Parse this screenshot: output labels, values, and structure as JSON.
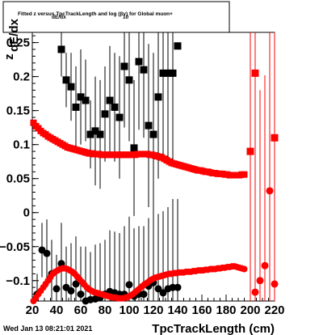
{
  "chart_data": {
    "type": "scatter",
    "title": "Fitted  z  versus TpcTrackLength and log  (βγ) for Global muon+",
    "title_sub_dedx": "dE/dx",
    "title_sub_log": "10",
    "xlabel": "TpcTrackLength (cm)",
    "ylabel": "z",
    "ylabel_sub": "dE/dx",
    "date_stamp": "Wed Jan 13 08:21:01 2021",
    "xlim": [
      20,
      220
    ],
    "ylim": [
      -0.13,
      0.265
    ],
    "x_ticks": [
      20,
      40,
      60,
      80,
      100,
      120,
      140,
      160,
      180,
      200,
      220
    ],
    "x_tick_labels": [
      "20",
      "40",
      "60",
      "80",
      "100",
      "120",
      "140",
      "160",
      "180",
      "200",
      "220"
    ],
    "y_ticks": [
      -0.1,
      -0.05,
      0,
      0.05,
      0.1,
      0.15,
      0.2,
      0.25
    ],
    "y_tick_labels": [
      "−0.1",
      "−0.05",
      "0",
      "0.05",
      "0.1",
      "0.15",
      "0.2",
      "0.25"
    ],
    "colors": {
      "black": "#000000",
      "red": "#ff0000"
    },
    "series": [
      {
        "marker": "square",
        "color": "#000000",
        "x": [
          44,
          48,
          52,
          56,
          60,
          64,
          68,
          72,
          76,
          80,
          84,
          88,
          92,
          96,
          100,
          104,
          108,
          112,
          116,
          120,
          124,
          128,
          132,
          136,
          140
        ],
        "y": [
          0.24,
          0.195,
          0.185,
          0.155,
          0.17,
          0.165,
          0.115,
          0.12,
          0.115,
          0.145,
          0.165,
          0.155,
          0.14,
          0.215,
          0.195,
          0.095,
          0.222,
          0.21,
          0.128,
          0.115,
          0.17,
          0.205,
          0.205,
          0.205,
          0.245
        ],
        "err": [
          0.04,
          0.04,
          0.05,
          0.06,
          0.07,
          0.06,
          0.05,
          0.08,
          0.08,
          0.07,
          0.08,
          0.08,
          0.09,
          0.09,
          0.09,
          0.1,
          0.1,
          0.1,
          0.12,
          0.12,
          0.12,
          0.13,
          0.13,
          0.13,
          0
        ]
      },
      {
        "marker": "circle",
        "color": "#000000",
        "x": [
          24,
          28,
          32,
          36,
          40,
          44,
          48,
          52,
          56,
          60,
          64,
          68,
          72,
          76,
          80,
          84,
          88,
          92,
          96,
          100,
          104,
          108,
          112,
          116,
          120,
          124,
          128,
          132,
          136,
          140
        ],
        "y": [
          -0.12,
          -0.055,
          -0.06,
          -0.09,
          -0.112,
          -0.075,
          -0.11,
          -0.115,
          -0.105,
          -0.12,
          -0.13,
          -0.128,
          -0.127,
          -0.125,
          -0.12,
          -0.116,
          -0.118,
          -0.12,
          -0.12,
          -0.106,
          -0.123,
          -0.12,
          -0.12,
          -0.108,
          -0.103,
          -0.112,
          -0.118,
          -0.112,
          -0.11,
          -0.11
        ],
        "err": [
          0.03,
          0.04,
          0.05,
          0.05,
          0.05,
          0.06,
          0.06,
          0.07,
          0.07,
          0.07,
          0.08,
          0.07,
          0.08,
          0.08,
          0.08,
          0.09,
          0.09,
          0.09,
          0.1,
          0.1,
          0.1,
          0.1,
          0.1,
          0.1,
          0.11,
          0.11,
          0.12,
          0.12,
          0.13,
          0.13
        ]
      },
      {
        "marker": "square",
        "color": "#ff0000",
        "x": [
          21,
          23,
          25,
          27,
          29,
          31,
          33,
          35,
          37,
          39,
          41,
          43,
          45,
          47,
          49,
          51,
          53,
          55,
          57,
          59,
          61,
          63,
          65,
          67,
          69,
          71,
          73,
          75,
          77,
          79,
          81,
          83,
          85,
          87,
          89,
          91,
          93,
          95,
          97,
          99,
          101,
          103,
          105,
          107,
          109,
          111,
          113,
          115,
          117,
          119,
          121,
          123,
          125,
          127,
          129,
          131,
          133,
          135,
          137,
          139,
          141,
          143,
          145,
          147,
          149,
          151,
          153,
          155,
          157,
          159,
          161,
          163,
          165,
          167,
          169,
          171,
          173,
          175,
          177,
          179,
          181,
          183,
          185,
          187,
          189,
          191,
          193,
          195
        ],
        "y": [
          0.132,
          0.127,
          0.124,
          0.12,
          0.117,
          0.115,
          0.112,
          0.11,
          0.108,
          0.106,
          0.104,
          0.102,
          0.1,
          0.098,
          0.096,
          0.095,
          0.094,
          0.093,
          0.092,
          0.091,
          0.09,
          0.089,
          0.088,
          0.087,
          0.087,
          0.086,
          0.086,
          0.086,
          0.085,
          0.085,
          0.085,
          0.085,
          0.085,
          0.085,
          0.085,
          0.085,
          0.085,
          0.085,
          0.085,
          0.085,
          0.085,
          0.085,
          0.085,
          0.086,
          0.086,
          0.086,
          0.086,
          0.086,
          0.085,
          0.085,
          0.084,
          0.083,
          0.082,
          0.081,
          0.079,
          0.077,
          0.075,
          0.073,
          0.072,
          0.071,
          0.07,
          0.069,
          0.068,
          0.067,
          0.066,
          0.065,
          0.064,
          0.063,
          0.062,
          0.062,
          0.061,
          0.06,
          0.06,
          0.059,
          0.058,
          0.058,
          0.057,
          0.057,
          0.057,
          0.056,
          0.056,
          0.055,
          0.055,
          0.055,
          0.055,
          0.055,
          0.056,
          0.056
        ],
        "err": []
      },
      {
        "marker": "circle",
        "color": "#ff0000",
        "x": [
          21,
          23,
          25,
          27,
          29,
          31,
          33,
          35,
          37,
          39,
          41,
          43,
          45,
          47,
          49,
          51,
          53,
          55,
          57,
          59,
          61,
          63,
          65,
          67,
          69,
          71,
          73,
          75,
          77,
          79,
          81,
          83,
          85,
          87,
          89,
          91,
          93,
          95,
          97,
          99,
          101,
          103,
          105,
          107,
          109,
          111,
          113,
          115,
          117,
          119,
          121,
          123,
          125,
          127,
          129,
          131,
          133,
          135,
          137,
          139,
          141,
          143,
          145,
          147,
          149,
          151,
          153,
          155,
          157,
          159,
          161,
          163,
          165,
          167,
          169,
          171,
          173,
          175,
          177,
          179,
          181,
          183,
          185,
          187,
          189,
          191,
          193,
          195
        ],
        "y": [
          -0.13,
          -0.125,
          -0.12,
          -0.115,
          -0.11,
          -0.105,
          -0.1,
          -0.095,
          -0.09,
          -0.087,
          -0.085,
          -0.083,
          -0.082,
          -0.082,
          -0.083,
          -0.085,
          -0.087,
          -0.09,
          -0.094,
          -0.098,
          -0.102,
          -0.106,
          -0.11,
          -0.113,
          -0.115,
          -0.117,
          -0.118,
          -0.119,
          -0.12,
          -0.121,
          -0.122,
          -0.123,
          -0.124,
          -0.125,
          -0.125,
          -0.126,
          -0.126,
          -0.126,
          -0.125,
          -0.124,
          -0.122,
          -0.12,
          -0.117,
          -0.114,
          -0.111,
          -0.108,
          -0.105,
          -0.103,
          -0.1,
          -0.098,
          -0.096,
          -0.095,
          -0.094,
          -0.093,
          -0.092,
          -0.091,
          -0.09,
          -0.09,
          -0.089,
          -0.089,
          -0.088,
          -0.088,
          -0.088,
          -0.087,
          -0.087,
          -0.087,
          -0.086,
          -0.086,
          -0.085,
          -0.085,
          -0.085,
          -0.084,
          -0.084,
          -0.083,
          -0.083,
          -0.083,
          -0.082,
          -0.082,
          -0.081,
          -0.081,
          -0.08,
          -0.08,
          -0.079,
          -0.079,
          -0.08,
          -0.081,
          -0.082,
          -0.083
        ],
        "err": []
      },
      {
        "marker": "square",
        "color": "#ff0000",
        "x": [
          200,
          204,
          220
        ],
        "y": [
          0.09,
          0.205,
          0.11
        ],
        "err": [
          0.28,
          0.28,
          0.28
        ]
      },
      {
        "marker": "circle",
        "color": "#ff0000",
        "x": [
          204,
          208,
          212,
          216,
          220
        ],
        "y": [
          -0.117,
          -0.1,
          -0.078,
          0.032,
          -0.105
        ],
        "err": [
          0.28,
          0.28,
          0.28,
          0.28,
          0.28
        ]
      }
    ]
  }
}
